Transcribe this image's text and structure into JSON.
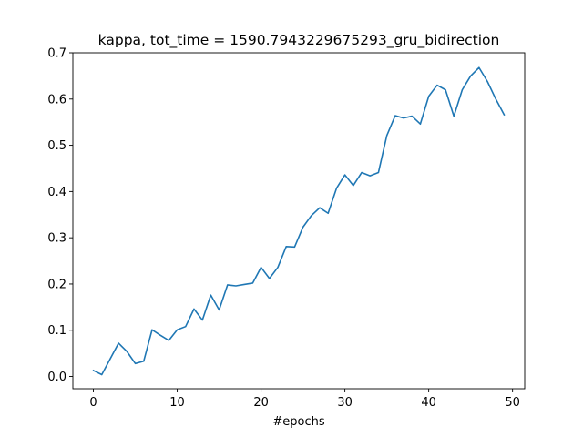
{
  "chart_data": {
    "type": "line",
    "title": "kappa, tot_time = 1590.7943229675293_gru_bidirection",
    "xlabel": "#epochs",
    "ylabel": "",
    "xlim": [
      -2.45,
      51.45
    ],
    "ylim": [
      -0.0265,
      0.7
    ],
    "xticks": [
      0,
      10,
      20,
      30,
      40,
      50
    ],
    "yticks": [
      0.0,
      0.1,
      0.2,
      0.3,
      0.4,
      0.5,
      0.6,
      0.7
    ],
    "grid": false,
    "line_color": "#1f77b4",
    "series": [
      {
        "x": [
          0,
          1,
          2,
          3,
          4,
          5,
          6,
          7,
          8,
          9,
          10,
          11,
          12,
          13,
          14,
          15,
          16,
          17,
          18,
          19,
          20,
          21,
          22,
          23,
          24,
          25,
          26,
          27,
          28,
          29,
          30,
          31,
          32,
          33,
          34,
          35,
          36,
          37,
          38,
          39,
          40,
          41,
          42,
          43,
          44,
          45,
          46,
          47,
          48,
          49
        ],
        "values": [
          0.013,
          0.004,
          0.038,
          0.072,
          0.054,
          0.028,
          0.033,
          0.101,
          0.089,
          0.078,
          0.101,
          0.108,
          0.146,
          0.122,
          0.176,
          0.144,
          0.198,
          0.196,
          0.199,
          0.202,
          0.236,
          0.212,
          0.236,
          0.281,
          0.28,
          0.323,
          0.348,
          0.365,
          0.353,
          0.407,
          0.436,
          0.413,
          0.441,
          0.434,
          0.441,
          0.521,
          0.564,
          0.559,
          0.563,
          0.546,
          0.606,
          0.63,
          0.62,
          0.563,
          0.62,
          0.65,
          0.668,
          0.638,
          0.6,
          0.566
        ]
      }
    ]
  }
}
